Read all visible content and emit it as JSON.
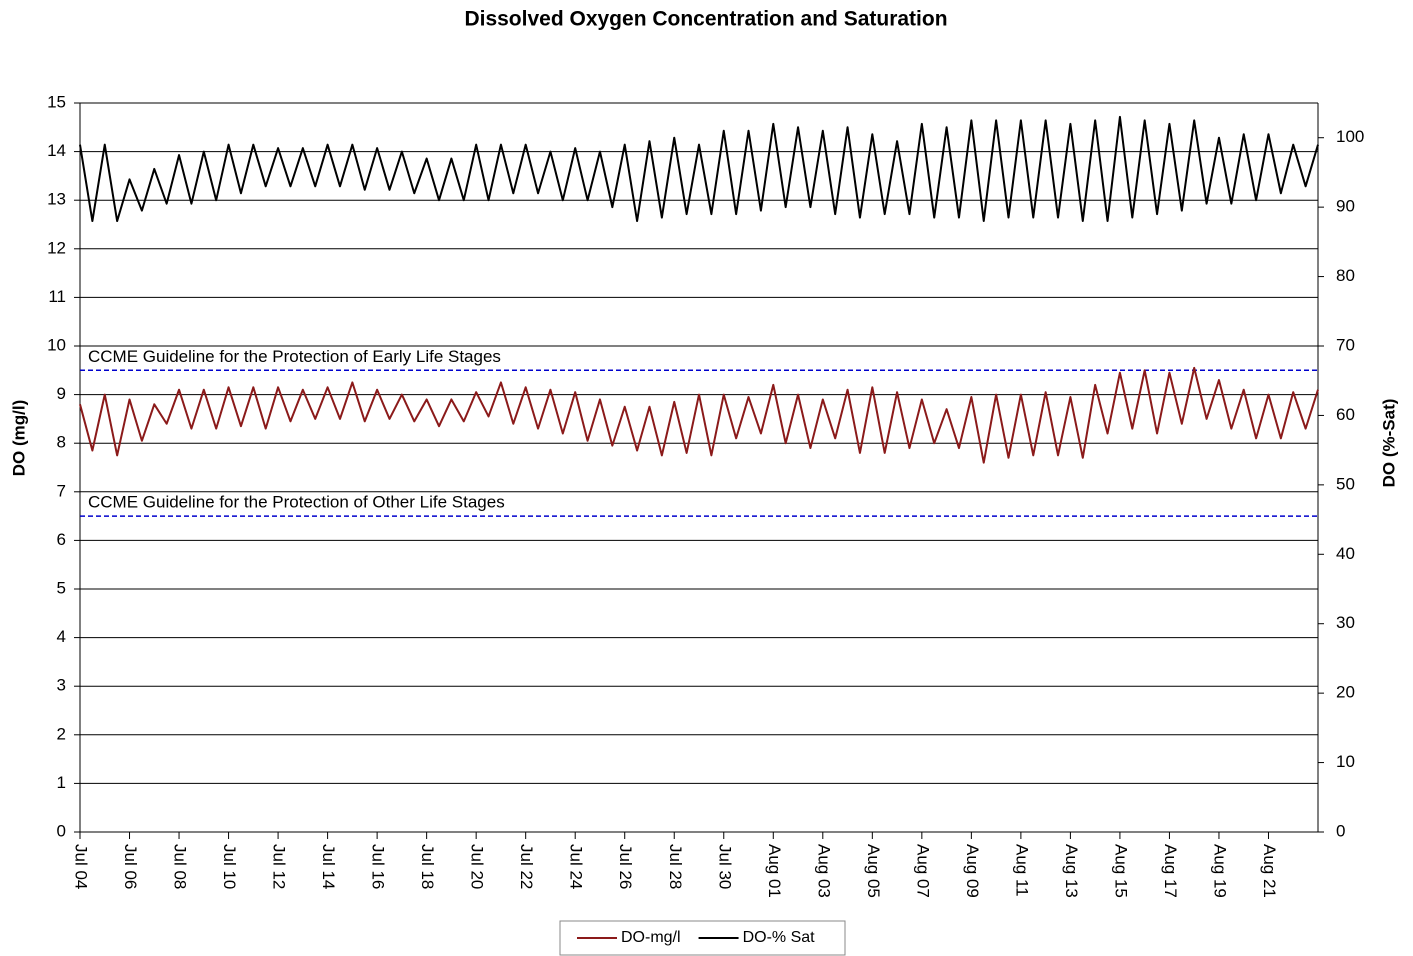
{
  "chart_data": {
    "type": "line",
    "title": "Dissolved Oxygen Concentration and Saturation",
    "ylabel": "DO (mg/l)",
    "y2label": "DO (%-Sat)",
    "xlim": [
      0,
      50
    ],
    "xticks": [
      {
        "value": 0,
        "label": "Jul 04"
      },
      {
        "value": 2,
        "label": "Jul 06"
      },
      {
        "value": 4,
        "label": "Jul 08"
      },
      {
        "value": 6,
        "label": "Jul 10"
      },
      {
        "value": 8,
        "label": "Jul 12"
      },
      {
        "value": 10,
        "label": "Jul 14"
      },
      {
        "value": 12,
        "label": "Jul 16"
      },
      {
        "value": 14,
        "label": "Jul 18"
      },
      {
        "value": 16,
        "label": "Jul 20"
      },
      {
        "value": 18,
        "label": "Jul 22"
      },
      {
        "value": 20,
        "label": "Jul 24"
      },
      {
        "value": 22,
        "label": "Jul 26"
      },
      {
        "value": 24,
        "label": "Jul 28"
      },
      {
        "value": 26,
        "label": "Jul 30"
      },
      {
        "value": 28,
        "label": "Aug 01"
      },
      {
        "value": 30,
        "label": "Aug 03"
      },
      {
        "value": 32,
        "label": "Aug 05"
      },
      {
        "value": 34,
        "label": "Aug 07"
      },
      {
        "value": 36,
        "label": "Aug 09"
      },
      {
        "value": 38,
        "label": "Aug 11"
      },
      {
        "value": 40,
        "label": "Aug 13"
      },
      {
        "value": 42,
        "label": "Aug 15"
      },
      {
        "value": 44,
        "label": "Aug 17"
      },
      {
        "value": 46,
        "label": "Aug 19"
      },
      {
        "value": 48,
        "label": "Aug 21"
      }
    ],
    "ylim": [
      0,
      15
    ],
    "yticks": [
      0,
      1,
      2,
      3,
      4,
      5,
      6,
      7,
      8,
      9,
      10,
      11,
      12,
      13,
      14,
      15
    ],
    "y2lim": [
      0,
      105
    ],
    "y2ticks": [
      0,
      10,
      20,
      30,
      40,
      50,
      60,
      70,
      80,
      90,
      100
    ],
    "grid": true,
    "legend": "bottom",
    "reference_lines": [
      {
        "value": 9.5,
        "label": "CCME Guideline for the Protection of Early Life Stages",
        "color": "#0000cc"
      },
      {
        "value": 6.5,
        "label": "CCME Guideline for the Protection of Other Life Stages",
        "color": "#0000cc"
      }
    ],
    "x": [
      0,
      0.5,
      1,
      1.5,
      2,
      2.5,
      3,
      3.5,
      4,
      4.5,
      5,
      5.5,
      6,
      6.5,
      7,
      7.5,
      8,
      8.5,
      9,
      9.5,
      10,
      10.5,
      11,
      11.5,
      12,
      12.5,
      13,
      13.5,
      14,
      14.5,
      15,
      15.5,
      16,
      16.5,
      17,
      17.5,
      18,
      18.5,
      19,
      19.5,
      20,
      20.5,
      21,
      21.5,
      22,
      22.5,
      23,
      23.5,
      24,
      24.5,
      25,
      25.5,
      26,
      26.5,
      27,
      27.5,
      28,
      28.5,
      29,
      29.5,
      30,
      30.5,
      31,
      31.5,
      32,
      32.5,
      33,
      33.5,
      34,
      34.5,
      35,
      35.5,
      36,
      36.5,
      37,
      37.5,
      38,
      38.5,
      39,
      39.5,
      40,
      40.5,
      41,
      41.5,
      42,
      42.5,
      43,
      43.5,
      44,
      44.5,
      45,
      45.5,
      46,
      46.5,
      47,
      47.5,
      48,
      48.5,
      49,
      49.5,
      50
    ],
    "series": [
      {
        "name": "DO-mg/l",
        "color": "#8b1a1a",
        "axis": "y",
        "values": [
          8.8,
          7.85,
          9.0,
          7.75,
          8.9,
          8.05,
          8.8,
          8.4,
          9.1,
          8.3,
          9.1,
          8.3,
          9.15,
          8.35,
          9.15,
          8.3,
          9.15,
          8.45,
          9.1,
          8.5,
          9.15,
          8.5,
          9.25,
          8.45,
          9.1,
          8.5,
          9.0,
          8.45,
          8.9,
          8.35,
          8.9,
          8.45,
          9.05,
          8.55,
          9.25,
          8.4,
          9.15,
          8.3,
          9.1,
          8.2,
          9.05,
          8.05,
          8.9,
          7.95,
          8.75,
          7.85,
          8.75,
          7.75,
          8.85,
          7.8,
          9.0,
          7.75,
          9.0,
          8.1,
          8.95,
          8.2,
          9.2,
          8.0,
          9.0,
          7.9,
          8.9,
          8.1,
          9.1,
          7.8,
          9.15,
          7.8,
          9.05,
          7.9,
          8.9,
          8.0,
          8.7,
          7.9,
          8.95,
          7.6,
          9.0,
          7.7,
          9.0,
          7.75,
          9.05,
          7.75,
          8.95,
          7.7,
          9.2,
          8.2,
          9.45,
          8.3,
          9.5,
          8.2,
          9.45,
          8.4,
          9.55,
          8.5,
          9.3,
          8.3,
          9.1,
          8.1,
          9.0,
          8.1,
          9.05,
          8.3,
          9.1
        ]
      },
      {
        "name": "DO-% Sat",
        "color": "#000000",
        "axis": "y2",
        "values": [
          99,
          88,
          99,
          88,
          94,
          89.5,
          95.5,
          90.5,
          97.5,
          90.5,
          98,
          91,
          99,
          92,
          99,
          93,
          98.5,
          93,
          98.5,
          93,
          99,
          93,
          99,
          92.5,
          98.5,
          92.5,
          98,
          92,
          97,
          91,
          97,
          91,
          99,
          91,
          99,
          92,
          99,
          92,
          98,
          91,
          98.5,
          91,
          98,
          90,
          99,
          88,
          99.5,
          88.5,
          100,
          89,
          99,
          89,
          101,
          89,
          101,
          89.5,
          102,
          90,
          101.5,
          90,
          101,
          89,
          101.5,
          88.5,
          100.5,
          89,
          99.5,
          89,
          102,
          88.5,
          101.5,
          88.5,
          102.5,
          88,
          102.5,
          88.5,
          102.5,
          88.5,
          102.5,
          88.5,
          102,
          88,
          102.5,
          88,
          103,
          88.5,
          102.5,
          89,
          102,
          89.5,
          102.5,
          90.5,
          100,
          90.5,
          100.5,
          91,
          100.5,
          92,
          99,
          93,
          99
        ]
      }
    ]
  }
}
